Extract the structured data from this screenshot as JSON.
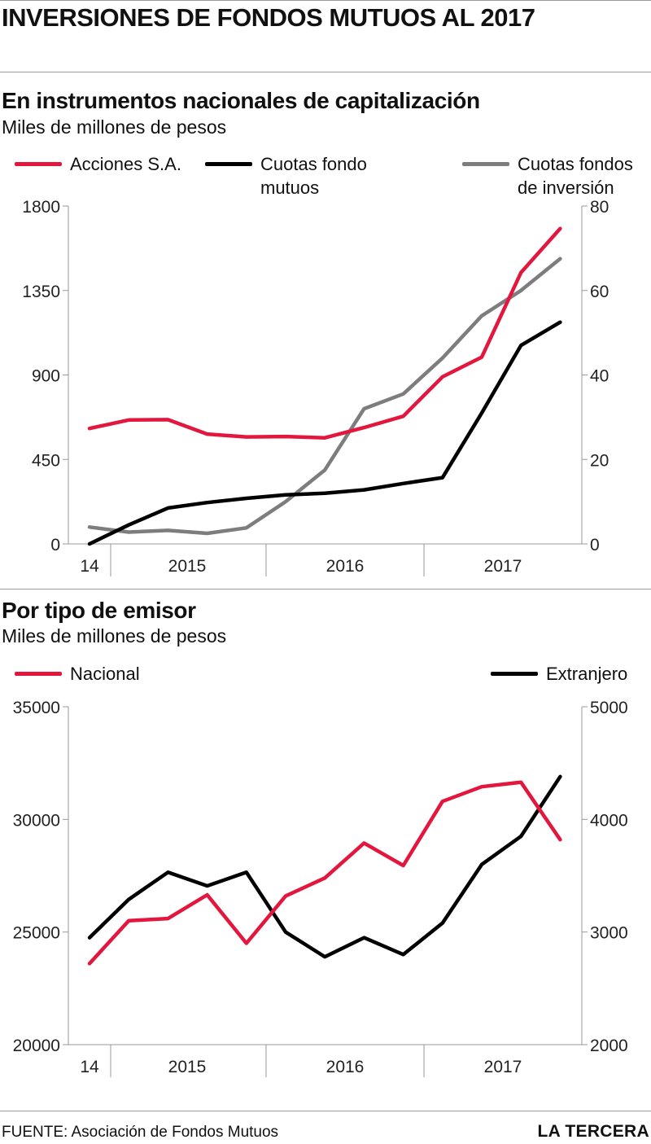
{
  "title": "INVERSIONES DE FONDOS MUTUOS AL 2017",
  "colors": {
    "red": "#e3173e",
    "black": "#000000",
    "gray": "#7d7d7d",
    "axis": "#999999"
  },
  "footer": {
    "source": "FUENTE: Asociación de Fondos Mutuos",
    "brand": "LA TERCERA"
  },
  "chart_data": [
    {
      "type": "line",
      "title": "En instrumentos nacionales de capitalización",
      "subtitle": "Miles de millones de pesos",
      "x_labels": [
        "14",
        "2015",
        "2016",
        "2017"
      ],
      "y_left": {
        "ticks": [
          "1800",
          "1350",
          "900",
          "450",
          "0"
        ],
        "range": [
          0,
          1800
        ]
      },
      "y_right": {
        "ticks": [
          "80",
          "60",
          "40",
          "20",
          "0"
        ],
        "range": [
          0,
          80
        ]
      },
      "grid": false,
      "legend_position": "top",
      "series": [
        {
          "name": "Acciones S.A.",
          "axis": "left",
          "color": "#e3173e",
          "values": [
            615,
            660,
            662,
            585,
            570,
            572,
            565,
            620,
            680,
            890,
            995,
            1445,
            1680
          ]
        },
        {
          "name": "Cuotas fondo mutuos",
          "axis": "right",
          "color": "#000000",
          "values": [
            0,
            4.5,
            8.5,
            9.8,
            10.8,
            11.6,
            12,
            12.8,
            14.3,
            15.7,
            31,
            47,
            52.5
          ]
        },
        {
          "name": "Cuotas fondos de inversión",
          "axis": "right",
          "color": "#7d7d7d",
          "values": [
            4,
            2.8,
            3.2,
            2.5,
            3.8,
            10,
            17.5,
            32,
            35.5,
            44,
            54,
            60,
            67.5
          ]
        }
      ]
    },
    {
      "type": "line",
      "title": "Por tipo de emisor",
      "subtitle": "Miles de millones de pesos",
      "x_labels": [
        "14",
        "2015",
        "2016",
        "2017"
      ],
      "y_left": {
        "ticks": [
          "35000",
          "30000",
          "25000",
          "20000"
        ],
        "range": [
          20000,
          35000
        ]
      },
      "y_right": {
        "ticks": [
          "5000",
          "4000",
          "3000",
          "2000"
        ],
        "range": [
          2000,
          5000
        ]
      },
      "grid": false,
      "legend_position": "top",
      "series": [
        {
          "name": "Nacional",
          "axis": "left",
          "color": "#e3173e",
          "values": [
            23600,
            25500,
            25600,
            26650,
            24500,
            26600,
            27400,
            28950,
            27950,
            30800,
            31450,
            31650,
            29100
          ]
        },
        {
          "name": "Extranjero",
          "axis": "right",
          "color": "#000000",
          "values": [
            2950,
            3290,
            3530,
            3410,
            3530,
            3000,
            2780,
            2950,
            2800,
            3080,
            3600,
            3850,
            4380
          ]
        }
      ]
    }
  ]
}
